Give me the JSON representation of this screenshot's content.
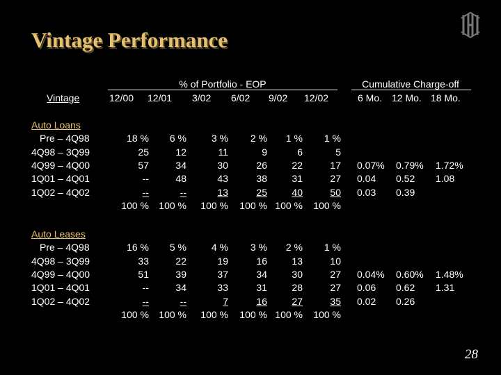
{
  "title": "Vintage Performance",
  "page_number": "28",
  "header": {
    "group1": "% of Portfolio - EOP",
    "group2": "Cumulative Charge-off",
    "vintage": "Vintage",
    "cols": [
      "12/00",
      "12/01",
      "3/02",
      "6/02",
      "9/02",
      "12/02"
    ],
    "co_cols": [
      "6 Mo.",
      "12 Mo.",
      "18 Mo."
    ]
  },
  "sections": [
    {
      "name": "Auto Loans",
      "rows": [
        {
          "label": "Pre – 4Q98",
          "vals": [
            "18 %",
            "6 %",
            "3 %",
            "2 %",
            "1 %",
            "1 %"
          ],
          "co": [
            "",
            "",
            ""
          ]
        },
        {
          "label": "4Q98 – 3Q99",
          "vals": [
            "25",
            "12",
            "11",
            "9",
            "6",
            "5"
          ],
          "co": [
            "",
            "",
            ""
          ]
        },
        {
          "label": "4Q99 – 4Q00",
          "vals": [
            "57",
            "34",
            "30",
            "26",
            "22",
            "17"
          ],
          "co": [
            "0.07%",
            "0.79%",
            "1.72%"
          ]
        },
        {
          "label": "1Q01 – 4Q01",
          "vals": [
            "--",
            "48",
            "43",
            "38",
            "31",
            "27"
          ],
          "co": [
            "0.04",
            "0.52",
            "1.08"
          ]
        },
        {
          "label": "1Q02 – 4Q02",
          "vals": [
            "--",
            "--",
            "13",
            "25",
            "40",
            "50"
          ],
          "co": [
            "0.03",
            "0.39",
            ""
          ]
        }
      ],
      "totals": [
        "100 %",
        "100 %",
        "100 %",
        "100 %",
        "100 %",
        "100 %"
      ]
    },
    {
      "name": "Auto Leases",
      "rows": [
        {
          "label": "Pre – 4Q98",
          "vals": [
            "16 %",
            "5 %",
            "4 %",
            "3 %",
            "2 %",
            "1 %"
          ],
          "co": [
            "",
            "",
            ""
          ]
        },
        {
          "label": "4Q98 – 3Q99",
          "vals": [
            "33",
            "22",
            "19",
            "16",
            "13",
            "10"
          ],
          "co": [
            "",
            "",
            ""
          ]
        },
        {
          "label": "4Q99 – 4Q00",
          "vals": [
            "51",
            "39",
            "37",
            "34",
            "30",
            "27"
          ],
          "co": [
            "0.04%",
            "0.60%",
            "1.48%"
          ]
        },
        {
          "label": "1Q01 – 4Q01",
          "vals": [
            "--",
            "34",
            "33",
            "31",
            "28",
            "27"
          ],
          "co": [
            "0.06",
            "0.62",
            "1.31"
          ]
        },
        {
          "label": "1Q02 – 4Q02",
          "vals": [
            "--",
            "--",
            "7",
            "16",
            "27",
            "35"
          ],
          "co": [
            "0.02",
            "0.26",
            ""
          ]
        }
      ],
      "totals": [
        "100 %",
        "100 %",
        "100 %",
        "100 %",
        "100 %",
        "100 %"
      ]
    }
  ]
}
